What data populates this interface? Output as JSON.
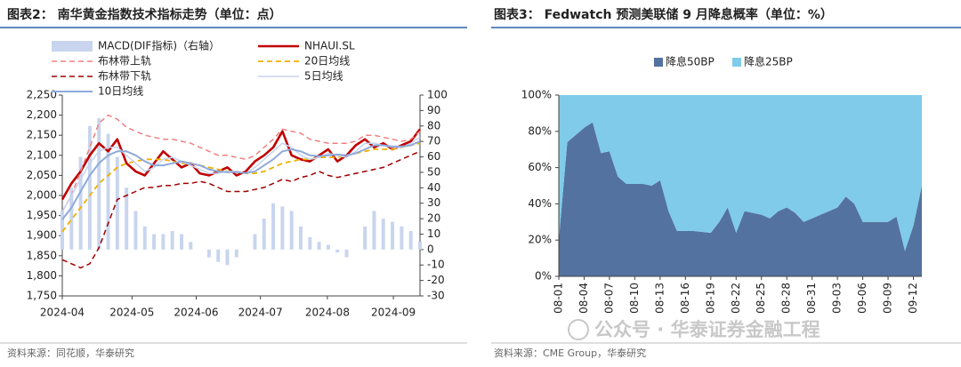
{
  "chart_data": [
    {
      "type": "line",
      "title": "图表2：  南华黄金指数技术指标走势（单位：点）",
      "source": "资料来源：同花顺，华泰研究",
      "x": [
        0,
        1,
        2,
        3,
        4,
        5,
        6,
        7,
        8,
        9,
        10,
        11,
        12,
        13,
        14,
        15,
        16,
        17,
        18,
        19,
        20,
        21,
        22,
        23,
        24,
        25,
        26,
        27,
        28,
        29,
        30,
        31,
        32,
        33,
        34,
        35,
        36,
        37,
        38,
        39
      ],
      "xlim": [
        0,
        39
      ],
      "xticks": [
        {
          "value": 0,
          "label": "2024-04"
        },
        {
          "value": 7.6,
          "label": "2024-05"
        },
        {
          "value": 14.6,
          "label": "2024-06"
        },
        {
          "value": 21.6,
          "label": "2024-07"
        },
        {
          "value": 28.9,
          "label": "2024-08"
        },
        {
          "value": 36.1,
          "label": "2024-09"
        }
      ],
      "ylim": [
        1750,
        2250
      ],
      "yticks": [
        {
          "value": 1750,
          "label": "1,750"
        },
        {
          "value": 1800,
          "label": "1,800"
        },
        {
          "value": 1850,
          "label": "1,850"
        },
        {
          "value": 1900,
          "label": "1,900"
        },
        {
          "value": 1950,
          "label": "1,950"
        },
        {
          "value": 2000,
          "label": "2,000"
        },
        {
          "value": 2050,
          "label": "2,050"
        },
        {
          "value": 2100,
          "label": "2,100"
        },
        {
          "value": 2150,
          "label": "2,150"
        },
        {
          "value": 2200,
          "label": "2,200"
        },
        {
          "value": 2250,
          "label": "2,250"
        }
      ],
      "y2lim": [
        -30,
        100
      ],
      "y2ticks": [
        -30,
        -20,
        -10,
        0,
        10,
        20,
        30,
        40,
        50,
        60,
        70,
        80,
        90,
        100
      ],
      "series": [
        {
          "name": "MACD(DIF指标)（右轴）",
          "mark": "bar",
          "axis": "y2",
          "color": "#c9d5ee",
          "values": [
            25,
            40,
            60,
            80,
            85,
            75,
            60,
            40,
            25,
            15,
            10,
            10,
            12,
            10,
            5,
            0,
            -5,
            -8,
            -10,
            -5,
            0,
            10,
            20,
            30,
            28,
            25,
            15,
            8,
            5,
            3,
            -2,
            -5,
            0,
            15,
            25,
            20,
            18,
            15,
            12,
            5
          ]
        },
        {
          "name": "NHAUI.SL",
          "color": "#c00000",
          "style": "solid",
          "linewidth": 2.6,
          "values": [
            1990,
            2030,
            2060,
            2100,
            2130,
            2110,
            2140,
            2080,
            2060,
            2050,
            2080,
            2110,
            2090,
            2070,
            2080,
            2055,
            2050,
            2060,
            2070,
            2050,
            2060,
            2085,
            2100,
            2120,
            2160,
            2100,
            2090,
            2085,
            2100,
            2115,
            2085,
            2100,
            2125,
            2140,
            2120,
            2130,
            2115,
            2125,
            2135,
            2165
          ]
        },
        {
          "name": "布林带上轨",
          "color": "#f08080",
          "style": "dashed",
          "linewidth": 1.5,
          "values": [
            1960,
            2000,
            2060,
            2120,
            2180,
            2200,
            2190,
            2170,
            2160,
            2150,
            2145,
            2140,
            2140,
            2135,
            2130,
            2120,
            2110,
            2100,
            2100,
            2095,
            2090,
            2100,
            2120,
            2140,
            2165,
            2160,
            2155,
            2140,
            2135,
            2130,
            2130,
            2130,
            2135,
            2150,
            2150,
            2145,
            2140,
            2135,
            2140,
            2160
          ]
        },
        {
          "name": "20日均线",
          "color": "#f0b000",
          "style": "dashed",
          "linewidth": 1.8,
          "values": [
            1910,
            1940,
            1970,
            2000,
            2030,
            2050,
            2070,
            2080,
            2085,
            2090,
            2090,
            2090,
            2085,
            2080,
            2080,
            2075,
            2070,
            2065,
            2060,
            2060,
            2055,
            2055,
            2060,
            2070,
            2080,
            2085,
            2090,
            2090,
            2095,
            2095,
            2095,
            2100,
            2105,
            2110,
            2115,
            2115,
            2115,
            2120,
            2125,
            2130
          ]
        },
        {
          "name": "布林带下轨",
          "color": "#a00000",
          "style": "dashed",
          "linewidth": 1.5,
          "values": [
            1840,
            1830,
            1820,
            1830,
            1870,
            1930,
            1990,
            2000,
            2010,
            2020,
            2020,
            2025,
            2025,
            2030,
            2030,
            2035,
            2030,
            2020,
            2010,
            2010,
            2010,
            2015,
            2020,
            2030,
            2040,
            2035,
            2045,
            2050,
            2060,
            2050,
            2045,
            2050,
            2055,
            2060,
            2065,
            2070,
            2080,
            2090,
            2100,
            2110
          ]
        },
        {
          "name": "5日均线",
          "color": "#c5d4ef",
          "style": "solid",
          "linewidth": 1.5,
          "values": [
            1960,
            2000,
            2040,
            2080,
            2110,
            2120,
            2120,
            2100,
            2080,
            2060,
            2070,
            2090,
            2095,
            2085,
            2075,
            2065,
            2055,
            2055,
            2060,
            2060,
            2055,
            2070,
            2090,
            2110,
            2130,
            2120,
            2100,
            2090,
            2095,
            2105,
            2100,
            2095,
            2110,
            2130,
            2130,
            2125,
            2120,
            2120,
            2130,
            2145
          ]
        },
        {
          "name": "10日均线",
          "color": "#8eaadb",
          "style": "solid",
          "linewidth": 2,
          "values": [
            1940,
            1970,
            2010,
            2050,
            2080,
            2100,
            2110,
            2110,
            2100,
            2085,
            2075,
            2075,
            2080,
            2085,
            2080,
            2075,
            2065,
            2060,
            2058,
            2058,
            2056,
            2060,
            2075,
            2090,
            2110,
            2115,
            2110,
            2100,
            2098,
            2100,
            2102,
            2100,
            2105,
            2115,
            2125,
            2125,
            2122,
            2122,
            2125,
            2135
          ]
        }
      ]
    },
    {
      "type": "area",
      "stacked": true,
      "title": "图表3：  Fedwatch 预测美联储 9 月降息概率（单位：%）",
      "source": "资料来源：CME Group，华泰研究",
      "categories": [
        "08-01",
        null,
        null,
        "08-04",
        null,
        null,
        "08-07",
        null,
        null,
        "08-10",
        null,
        null,
        "08-13",
        null,
        null,
        "08-16",
        null,
        null,
        "08-19",
        null,
        null,
        "08-22",
        null,
        null,
        "08-25",
        null,
        null,
        "08-28",
        null,
        null,
        "08-31",
        null,
        null,
        "09-03",
        null,
        null,
        "09-06",
        null,
        null,
        "09-09",
        null,
        null,
        "09-12",
        null
      ],
      "ylim": [
        0,
        100
      ],
      "yticks": [
        {
          "value": 0,
          "label": "0%"
        },
        {
          "value": 20,
          "label": "20%"
        },
        {
          "value": 40,
          "label": "40%"
        },
        {
          "value": 60,
          "label": "60%"
        },
        {
          "value": 80,
          "label": "80%"
        },
        {
          "value": 100,
          "label": "100%"
        }
      ],
      "series": [
        {
          "name": "降息50BP",
          "color": "#54729f",
          "values": [
            20,
            74,
            78,
            82,
            85,
            68,
            69,
            55,
            51,
            51,
            51,
            50,
            53,
            36,
            25,
            25,
            25,
            24.5,
            24,
            30,
            38,
            24,
            36,
            35,
            34,
            32,
            36,
            38,
            35,
            30,
            32,
            34,
            36,
            38,
            44,
            40,
            30,
            30,
            30,
            30,
            33,
            14,
            28,
            50
          ]
        },
        {
          "name": "降息25BP",
          "color": "#7fcbe9",
          "values": [
            80,
            26,
            22,
            18,
            15,
            32,
            31,
            45,
            49,
            49,
            49,
            50,
            47,
            64,
            75,
            75,
            75,
            75.5,
            76,
            70,
            62,
            76,
            64,
            65,
            66,
            68,
            64,
            62,
            65,
            70,
            68,
            66,
            64,
            62,
            56,
            60,
            70,
            70,
            70,
            70,
            67,
            86,
            72,
            50
          ]
        }
      ]
    }
  ],
  "watermark": "公众号 · 华泰证券金融工程"
}
